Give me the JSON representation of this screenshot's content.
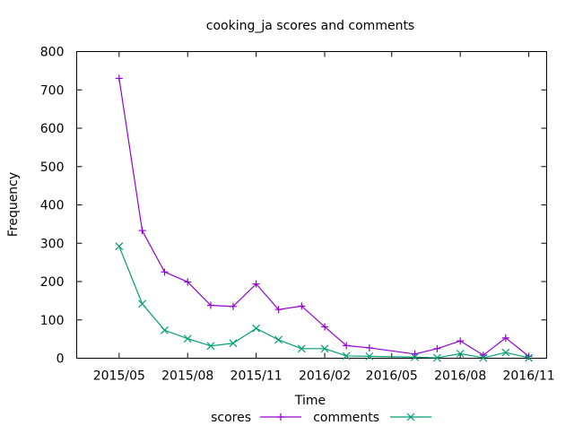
{
  "chart_data": {
    "type": "line",
    "title": "cooking_ja scores and comments",
    "xlabel": "Time",
    "ylabel": "Frequency",
    "ylim": [
      0,
      800
    ],
    "yticks": [
      0,
      100,
      200,
      300,
      400,
      500,
      600,
      700,
      800
    ],
    "xlim": [
      "2015-03-05",
      "2016-11-25"
    ],
    "xticks": [
      {
        "label": "2015/05",
        "date": "2015-05-01"
      },
      {
        "label": "2015/08",
        "date": "2015-08-01"
      },
      {
        "label": "2015/11",
        "date": "2015-11-01"
      },
      {
        "label": "2016/02",
        "date": "2016-02-01"
      },
      {
        "label": "2016/05",
        "date": "2016-05-01"
      },
      {
        "label": "2016/08",
        "date": "2016-08-01"
      },
      {
        "label": "2016/11",
        "date": "2016-11-01"
      }
    ],
    "x": [
      "2015-05-01",
      "2015-06-01",
      "2015-07-01",
      "2015-08-01",
      "2015-09-01",
      "2015-10-01",
      "2015-11-01",
      "2015-12-01",
      "2016-01-01",
      "2016-02-01",
      "2016-03-01",
      "2016-04-01",
      "2016-06-01",
      "2016-07-01",
      "2016-08-01",
      "2016-09-01",
      "2016-10-01",
      "2016-11-01"
    ],
    "series": [
      {
        "name": "scores",
        "color": "#9400d3",
        "marker": "plus",
        "values": [
          730,
          333,
          225,
          199,
          138,
          135,
          194,
          127,
          136,
          82,
          33,
          27,
          11,
          25,
          45,
          8,
          53,
          5
        ]
      },
      {
        "name": "comments",
        "color": "#009e73",
        "marker": "cross",
        "values": [
          292,
          142,
          73,
          51,
          32,
          39,
          78,
          48,
          25,
          25,
          6,
          5,
          3,
          1,
          12,
          1,
          15,
          1
        ]
      }
    ],
    "grid": false,
    "legend": "bottom"
  }
}
